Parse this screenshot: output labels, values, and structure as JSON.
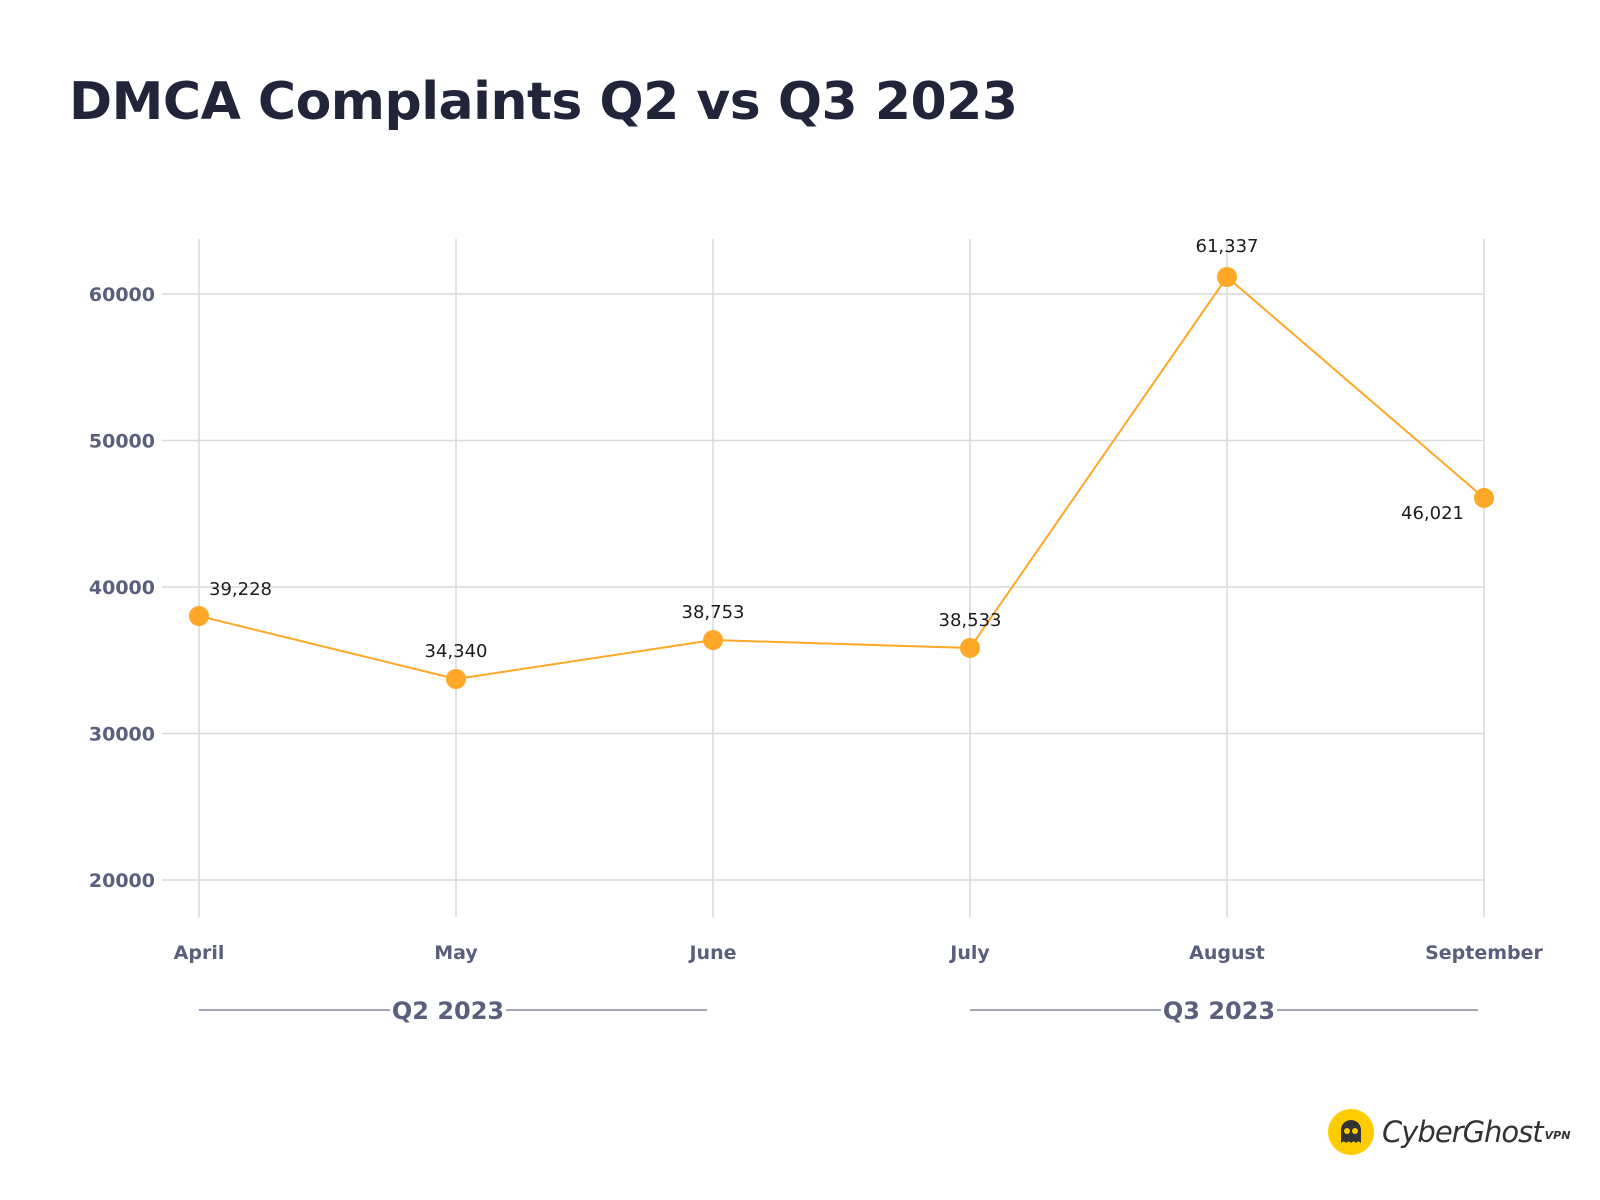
{
  "chart_data": {
    "type": "line",
    "title": "DMCA Complaints Q2 vs Q3 2023",
    "xlabel": "",
    "ylabel": "",
    "categories": [
      "April",
      "May",
      "June",
      "July",
      "August",
      "September"
    ],
    "series": [
      {
        "name": "DMCA Complaints",
        "color": "#ffa726",
        "values": [
          39228,
          34340,
          38753,
          38533,
          61337,
          46021
        ],
        "value_labels": [
          "39,228",
          "34,340",
          "38,753",
          "38,533",
          "61,337",
          "46,021"
        ],
        "plotted_values": [
          38020,
          33720,
          36380,
          35840,
          61160,
          46080
        ],
        "label_positions": [
          "top-right",
          "top",
          "top",
          "top",
          "top",
          "bottom-left"
        ]
      }
    ],
    "ylim": [
      17500,
      64200
    ],
    "yticks": [
      20000,
      30000,
      40000,
      50000,
      60000
    ],
    "ytick_labels": [
      "20000",
      "30000",
      "40000",
      "50000",
      "60000"
    ],
    "grid": true,
    "legend": "none",
    "groups": [
      {
        "label": "Q2 2023",
        "categories": [
          "April",
          "May",
          "June"
        ]
      },
      {
        "label": "Q3 2023",
        "categories": [
          "July",
          "August",
          "September"
        ]
      }
    ],
    "colors": {
      "line": "#ffa726",
      "grid": "#d9d9de",
      "axis_text": "#5b5f7e",
      "title": "#22243a",
      "group_rule": "#6b6f8c"
    }
  },
  "branding": {
    "logo_name": "CyberGhost",
    "logo_suffix": "VPN",
    "logo_color": "#ffcc00"
  }
}
